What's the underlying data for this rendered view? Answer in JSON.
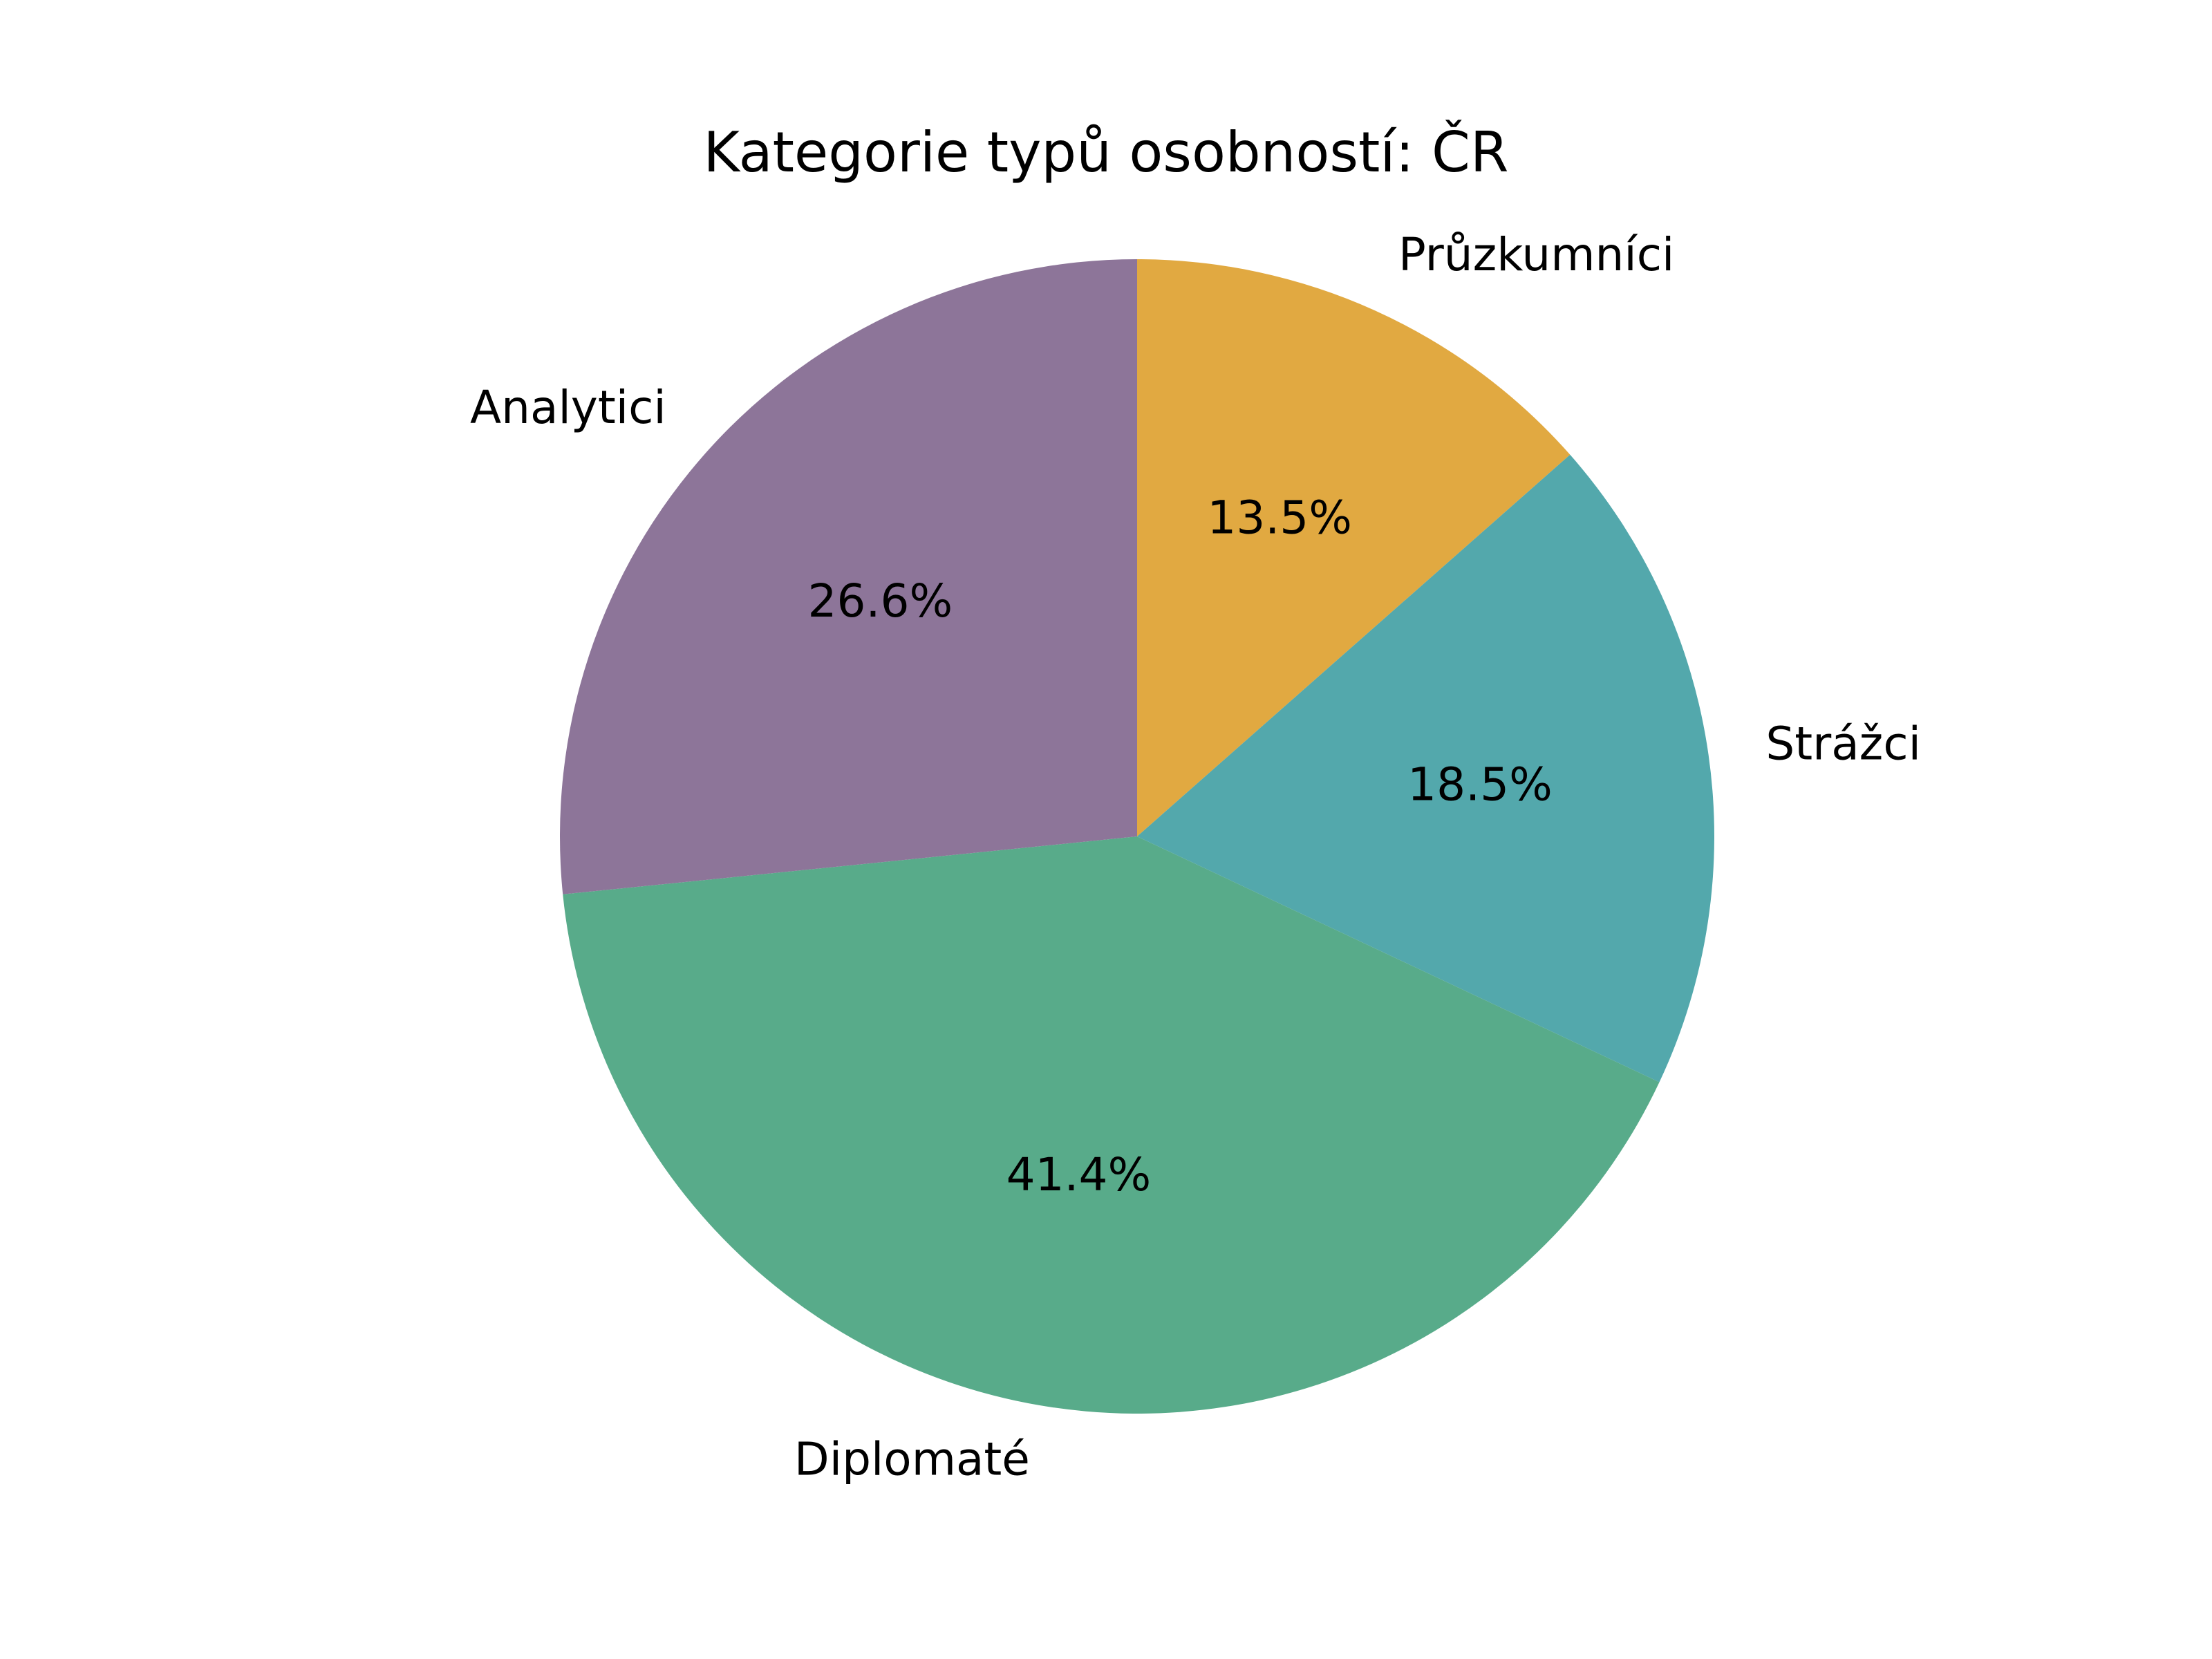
{
  "chart_data": {
    "type": "pie",
    "title": "Kategorie typů osobností: ČR",
    "categories": [
      "Průzkumníci",
      "Strážci",
      "Diplomaté",
      "Analytici"
    ],
    "values": [
      13.5,
      18.5,
      41.4,
      26.6
    ],
    "value_labels": [
      "13.5%",
      "18.5%",
      "41.4%",
      "26.6%"
    ],
    "colors": [
      "#E1A941",
      "#53A8AC",
      "#58AB8A",
      "#8D7599"
    ],
    "start": "top",
    "direction": "clockwise",
    "legend": "none"
  }
}
